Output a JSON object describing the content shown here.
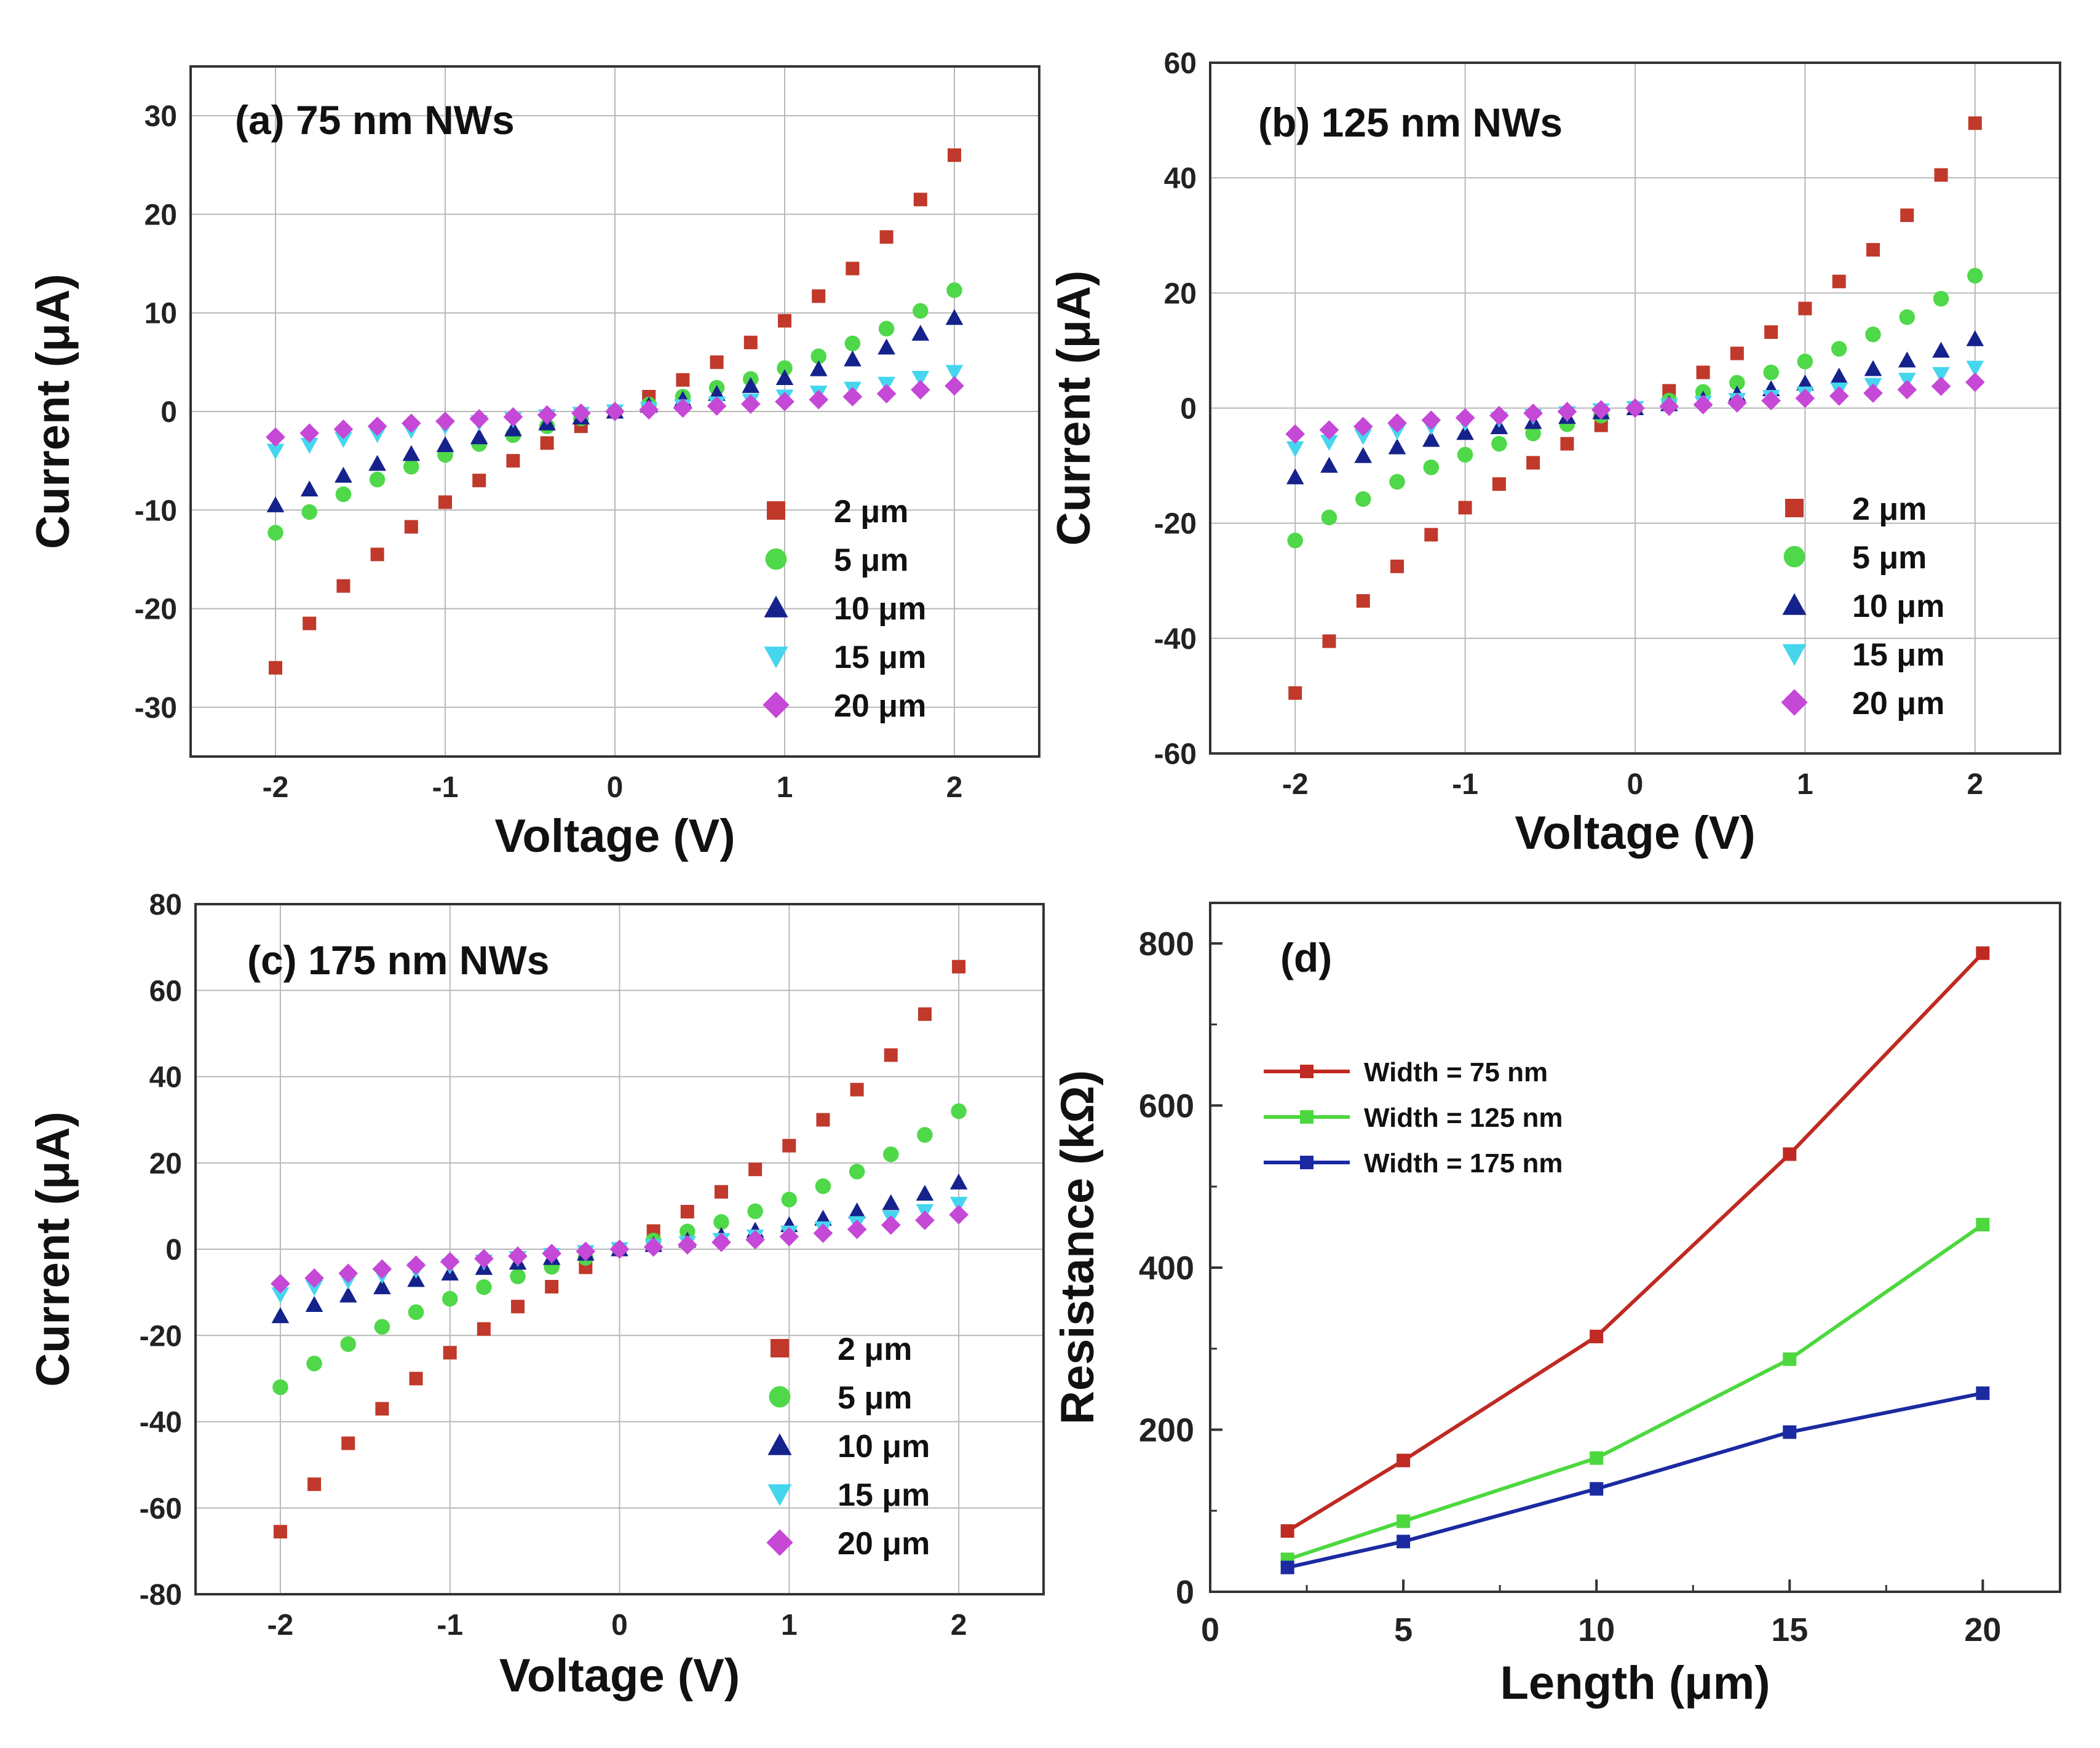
{
  "chart_data": [
    {
      "type": "scatter",
      "panel": "a",
      "title": "(a) 75 nm NWs",
      "xlabel": "Voltage (V)",
      "ylabel": "Current (μA)",
      "xlim": [
        -2.5,
        2.5
      ],
      "ylim": [
        -35,
        35
      ],
      "xticks": [
        -2,
        -1,
        0,
        1,
        2
      ],
      "yticks": [
        -30,
        -20,
        -10,
        0,
        10,
        20,
        30
      ],
      "grid": true,
      "legend_position": "bottom-right",
      "x": [
        -2.0,
        -1.8,
        -1.6,
        -1.4,
        -1.2,
        -1.0,
        -0.8,
        -0.6,
        -0.4,
        -0.2,
        0.0,
        0.2,
        0.4,
        0.6,
        0.8,
        1.0,
        1.2,
        1.4,
        1.6,
        1.8,
        2.0
      ],
      "series": [
        {
          "name": "2 μm",
          "values": [
            -26,
            -21.5,
            -17.7,
            -14.5,
            -11.7,
            -9.2,
            -7,
            -5,
            -3.2,
            -1.5,
            0,
            1.5,
            3.2,
            5,
            7,
            9.2,
            11.7,
            14.5,
            17.7,
            21.5,
            26
          ]
        },
        {
          "name": "5 μm",
          "values": [
            -12.3,
            -10.2,
            -8.4,
            -6.9,
            -5.6,
            -4.4,
            -3.3,
            -2.4,
            -1.5,
            -0.7,
            0,
            0.7,
            1.5,
            2.4,
            3.3,
            4.4,
            5.6,
            6.9,
            8.4,
            10.2,
            12.3
          ]
        },
        {
          "name": "10 μm",
          "values": [
            -9.5,
            -7.9,
            -6.5,
            -5.3,
            -4.3,
            -3.4,
            -2.6,
            -1.8,
            -1.2,
            -0.6,
            0,
            0.6,
            1.2,
            1.8,
            2.6,
            3.4,
            4.3,
            5.3,
            6.5,
            7.9,
            9.5
          ]
        },
        {
          "name": "15 μm",
          "values": [
            -4,
            -3.4,
            -2.8,
            -2.3,
            -1.9,
            -1.5,
            -1.1,
            -0.8,
            -0.5,
            -0.25,
            0,
            0.25,
            0.5,
            0.8,
            1.1,
            1.5,
            1.9,
            2.3,
            2.8,
            3.4,
            4
          ]
        },
        {
          "name": "20 μm",
          "values": [
            -2.6,
            -2.2,
            -1.8,
            -1.5,
            -1.2,
            -1.0,
            -0.75,
            -0.55,
            -0.35,
            -0.17,
            0,
            0.17,
            0.35,
            0.55,
            0.75,
            1.0,
            1.2,
            1.5,
            1.8,
            2.2,
            2.6
          ]
        }
      ]
    },
    {
      "type": "scatter",
      "panel": "b",
      "title": "(b) 125 nm NWs",
      "xlabel": "Voltage (V)",
      "ylabel": "Current (μA)",
      "xlim": [
        -2.5,
        2.5
      ],
      "ylim": [
        -60,
        60
      ],
      "xticks": [
        -2,
        -1,
        0,
        1,
        2
      ],
      "yticks": [
        -60,
        -40,
        -20,
        0,
        20,
        40,
        60
      ],
      "grid": true,
      "legend_position": "bottom-right",
      "x": [
        -2.0,
        -1.8,
        -1.6,
        -1.4,
        -1.2,
        -1.0,
        -0.8,
        -0.6,
        -0.4,
        -0.2,
        0.0,
        0.2,
        0.4,
        0.6,
        0.8,
        1.0,
        1.2,
        1.4,
        1.6,
        1.8,
        2.0
      ],
      "series": [
        {
          "name": "2 μm",
          "values": [
            -49.5,
            -40.5,
            -33.5,
            -27.5,
            -22,
            -17.3,
            -13.2,
            -9.5,
            -6.2,
            -3,
            0,
            3,
            6.2,
            9.5,
            13.2,
            17.3,
            22,
            27.5,
            33.5,
            40.5,
            49.5
          ]
        },
        {
          "name": "5 μm",
          "values": [
            -23,
            -19,
            -15.8,
            -12.8,
            -10.3,
            -8.1,
            -6.2,
            -4.4,
            -2.8,
            -1.3,
            0,
            1.3,
            2.8,
            4.4,
            6.2,
            8.1,
            10.3,
            12.8,
            15.8,
            19,
            23
          ]
        },
        {
          "name": "10 μm",
          "values": [
            -12,
            -10,
            -8.3,
            -6.8,
            -5.5,
            -4.3,
            -3.3,
            -2.4,
            -1.5,
            -0.7,
            0,
            0.7,
            1.5,
            2.4,
            3.3,
            4.3,
            5.5,
            6.8,
            8.3,
            10,
            12
          ]
        },
        {
          "name": "15 μm",
          "values": [
            -7,
            -5.9,
            -4.9,
            -4,
            -3.2,
            -2.5,
            -1.9,
            -1.4,
            -0.9,
            -0.4,
            0,
            0.4,
            0.9,
            1.4,
            1.9,
            2.5,
            3.2,
            4,
            4.9,
            5.9,
            7
          ]
        },
        {
          "name": "20 μm",
          "values": [
            -4.5,
            -3.8,
            -3.2,
            -2.6,
            -2.1,
            -1.7,
            -1.3,
            -0.9,
            -0.6,
            -0.3,
            0,
            0.3,
            0.6,
            0.9,
            1.3,
            1.7,
            2.1,
            2.6,
            3.2,
            3.8,
            4.5
          ]
        }
      ]
    },
    {
      "type": "scatter",
      "panel": "c",
      "title": "(c) 175 nm NWs",
      "xlabel": "Voltage (V)",
      "ylabel": "Current (μA)",
      "xlim": [
        -2.5,
        2.5
      ],
      "ylim": [
        -80,
        80
      ],
      "xticks": [
        -2,
        -1,
        0,
        1,
        2
      ],
      "yticks": [
        -80,
        -60,
        -40,
        -20,
        0,
        20,
        40,
        60,
        80
      ],
      "grid": true,
      "legend_position": "bottom-right",
      "x": [
        -2.0,
        -1.8,
        -1.6,
        -1.4,
        -1.2,
        -1.0,
        -0.8,
        -0.6,
        -0.4,
        -0.2,
        0.0,
        0.2,
        0.4,
        0.6,
        0.8,
        1.0,
        1.2,
        1.4,
        1.6,
        1.8,
        2.0
      ],
      "series": [
        {
          "name": "2 μm",
          "values": [
            -65.5,
            -54.5,
            -45,
            -37,
            -30,
            -24,
            -18.5,
            -13.3,
            -8.7,
            -4.2,
            0,
            4.2,
            8.7,
            13.3,
            18.5,
            24,
            30,
            37,
            45,
            54.5,
            65.5
          ]
        },
        {
          "name": "5 μm",
          "values": [
            -32,
            -26.5,
            -22,
            -18,
            -14.6,
            -11.5,
            -8.8,
            -6.3,
            -4.1,
            -2,
            0,
            2,
            4.1,
            6.3,
            8.8,
            11.5,
            14.6,
            18,
            22,
            26.5,
            32
          ]
        },
        {
          "name": "10 μm",
          "values": [
            -15.5,
            -12.9,
            -10.7,
            -8.8,
            -7.1,
            -5.6,
            -4.3,
            -3.1,
            -2,
            -1,
            0,
            1,
            2,
            3.1,
            4.3,
            5.6,
            7.1,
            8.8,
            10.7,
            12.9,
            15.5
          ]
        },
        {
          "name": "15 μm",
          "values": [
            -10.5,
            -8.8,
            -7.3,
            -6,
            -4.8,
            -3.8,
            -2.9,
            -2.1,
            -1.4,
            -0.7,
            0,
            0.7,
            1.4,
            2.1,
            2.9,
            3.8,
            4.8,
            6,
            7.3,
            8.8,
            10.5
          ]
        },
        {
          "name": "20 μm",
          "values": [
            -8,
            -6.7,
            -5.6,
            -4.6,
            -3.7,
            -2.9,
            -2.2,
            -1.6,
            -1,
            -0.5,
            0,
            0.5,
            1,
            1.6,
            2.2,
            2.9,
            3.7,
            4.6,
            5.6,
            6.7,
            8
          ]
        }
      ]
    },
    {
      "type": "line",
      "panel": "d",
      "title": "(d)",
      "xlabel": "Length (μm)",
      "ylabel": "Resistance (kΩ)",
      "xlim": [
        0,
        22
      ],
      "ylim": [
        0,
        850
      ],
      "xticks": [
        0,
        5,
        10,
        15,
        20
      ],
      "yticks": [
        0,
        200,
        400,
        600,
        800
      ],
      "grid": false,
      "legend_position": "top-left",
      "x": [
        2,
        5,
        10,
        15,
        20
      ],
      "series": [
        {
          "name": "Width = 75 nm",
          "values": [
            75,
            162,
            315,
            540,
            788
          ]
        },
        {
          "name": "Width = 125 nm",
          "values": [
            40,
            87,
            165,
            287,
            453
          ]
        },
        {
          "name": "Width = 175 nm",
          "values": [
            30,
            62,
            127,
            197,
            245
          ]
        }
      ]
    }
  ],
  "colors": {
    "series_2um": "#c0392b",
    "series_5um": "#4fd84a",
    "series_10um": "#15228c",
    "series_15um": "#45d6ee",
    "series_20um": "#c548d6",
    "line_75nm": "#bf2a22",
    "line_125nm": "#4cd83e",
    "line_175nm": "#1b2aa0"
  }
}
